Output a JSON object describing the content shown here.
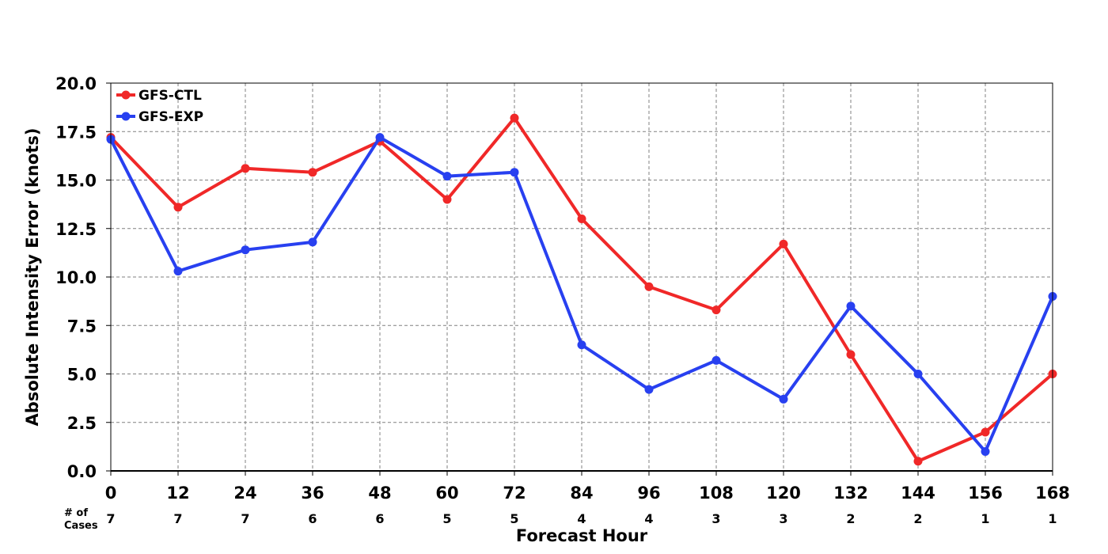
{
  "chart_data": {
    "type": "line",
    "xlabel": "Forecast Hour",
    "ylabel": "Absolute Intensity Error (knots)",
    "x": [
      0,
      12,
      24,
      36,
      48,
      60,
      72,
      84,
      96,
      108,
      120,
      132,
      144,
      156,
      168
    ],
    "xlim": [
      0,
      168
    ],
    "ylim": [
      0,
      20
    ],
    "yticks": [
      "0.0",
      "2.5",
      "5.0",
      "7.5",
      "10.0",
      "12.5",
      "15.0",
      "17.5",
      "20.0"
    ],
    "grid": true,
    "legend_position": "top-left",
    "series": [
      {
        "name": "GFS-CTL",
        "color": "#f02828",
        "values": [
          17.2,
          13.6,
          15.6,
          15.4,
          17.0,
          14.0,
          18.2,
          13.0,
          9.5,
          8.3,
          11.7,
          6.0,
          0.5,
          2.0,
          5.0
        ]
      },
      {
        "name": "GFS-EXP",
        "color": "#2840f0",
        "values": [
          17.1,
          10.3,
          11.4,
          11.8,
          17.2,
          15.2,
          15.4,
          6.5,
          4.2,
          5.7,
          3.7,
          8.5,
          5.0,
          1.0,
          9.0
        ]
      }
    ],
    "cases_label_line1": "# of",
    "cases_label_line2": "Cases",
    "cases": [
      7,
      7,
      7,
      6,
      6,
      5,
      5,
      4,
      4,
      3,
      3,
      2,
      2,
      1,
      1
    ]
  }
}
